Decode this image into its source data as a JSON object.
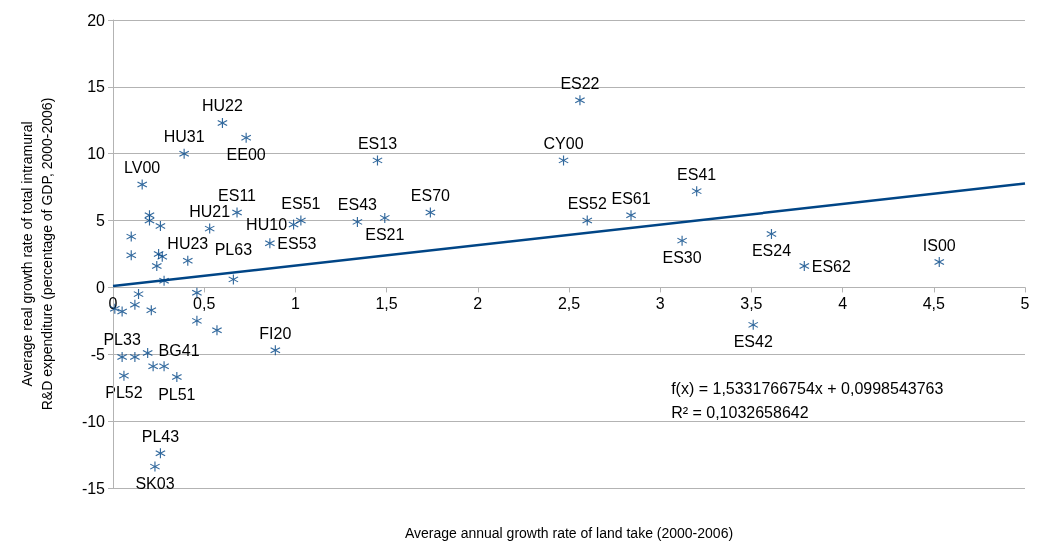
{
  "chart_data": {
    "type": "scatter",
    "xlabel": "Average annual growth rate of land take (2000-2006)",
    "ylabel": "Average real growth rate of total intramural\nR&D expenditure (percentage of GDP, 2000-2006)",
    "xlim": [
      0,
      5
    ],
    "xticks": [
      0,
      {
        "value": 0.5,
        "label": "0,5"
      },
      1,
      {
        "value": 1.5,
        "label": "1,5"
      },
      2,
      {
        "value": 2.5,
        "label": "2,5"
      },
      3,
      {
        "value": 3.5,
        "label": "3,5"
      },
      4,
      {
        "value": 4.5,
        "label": "4,5"
      },
      5
    ],
    "ylim": [
      -15,
      20
    ],
    "yticks": [
      -15,
      -10,
      -5,
      0,
      5,
      10,
      15,
      20
    ],
    "grid": "y",
    "marker": "cross",
    "series": [
      {
        "color": "#004586",
        "x": [
          2.56,
          0.6,
          0.73,
          0.39,
          1.45,
          2.47,
          0.16,
          3.2,
          0.68,
          1.74,
          1.03,
          0.99,
          1.34,
          1.49,
          2.6,
          2.84,
          0.53,
          3.12,
          3.61,
          0.86,
          0.41,
          3.79,
          4.53,
          0.66,
          3.51,
          0.89,
          0.05,
          0.12,
          0.19,
          0.06,
          0.22,
          0.28,
          0.35,
          0.26,
          0.23,
          0.14,
          0.12,
          0.21,
          0.01,
          0.05,
          0.46,
          0.46,
          0.57,
          0.2,
          0.2,
          0.26,
          0.1,
          0.1,
          0.25,
          0.27,
          0.24,
          0.28
        ],
        "values": [
          14.0,
          12.3,
          11.2,
          10.0,
          9.5,
          9.5,
          7.7,
          7.2,
          5.6,
          5.6,
          5.0,
          4.7,
          4.9,
          5.2,
          5.0,
          5.4,
          4.4,
          3.5,
          4.0,
          3.3,
          2.0,
          1.6,
          1.9,
          0.6,
          -2.8,
          -4.7,
          -5.2,
          -5.2,
          -4.9,
          -6.6,
          -5.9,
          -5.9,
          -6.7,
          -12.4,
          -13.4,
          -0.5,
          -1.3,
          -1.7,
          -1.6,
          -1.8,
          -0.4,
          -2.5,
          -3.2,
          5.4,
          5.0,
          4.6,
          3.8,
          2.4,
          2.5,
          2.3,
          1.6,
          0.5
        ]
      },
      {
        "type": "line",
        "color": "#004586",
        "line_style": "solid",
        "marker": "none",
        "x": [
          0,
          5
        ],
        "values": [
          0.1,
          7.77
        ]
      }
    ],
    "annotations": [
      {
        "text": "ES22",
        "x": 2.56,
        "y": 14.0
      },
      {
        "text": "HU22",
        "x": 0.6,
        "y": 12.3
      },
      {
        "text": "EE00",
        "x": 0.73,
        "y": 11.2
      },
      {
        "text": "HU31",
        "x": 0.39,
        "y": 10.0
      },
      {
        "text": "ES13",
        "x": 1.45,
        "y": 9.5
      },
      {
        "text": "CY00",
        "x": 2.47,
        "y": 9.5
      },
      {
        "text": "LV00",
        "x": 0.16,
        "y": 7.7
      },
      {
        "text": "ES41",
        "x": 3.2,
        "y": 7.2
      },
      {
        "text": "ES11",
        "x": 0.68,
        "y": 5.6
      },
      {
        "text": "ES70",
        "x": 1.74,
        "y": 5.6
      },
      {
        "text": "ES51",
        "x": 1.03,
        "y": 5.0
      },
      {
        "text": "HU10",
        "x": 0.99,
        "y": 4.7
      },
      {
        "text": "ES43",
        "x": 1.34,
        "y": 4.9
      },
      {
        "text": "ES21",
        "x": 1.49,
        "y": 5.2
      },
      {
        "text": "ES52",
        "x": 2.6,
        "y": 5.0
      },
      {
        "text": "ES61",
        "x": 2.84,
        "y": 5.4
      },
      {
        "text": "HU21",
        "x": 0.53,
        "y": 4.4
      },
      {
        "text": "ES30",
        "x": 3.12,
        "y": 3.5
      },
      {
        "text": "ES24",
        "x": 3.61,
        "y": 4.0
      },
      {
        "text": "ES53",
        "x": 0.86,
        "y": 3.3
      },
      {
        "text": "HU23",
        "x": 0.41,
        "y": 2.0
      },
      {
        "text": "ES62",
        "x": 3.79,
        "y": 1.6
      },
      {
        "text": "IS00",
        "x": 4.53,
        "y": 1.9
      },
      {
        "text": "PL63",
        "x": 0.66,
        "y": 0.6
      },
      {
        "text": "ES42",
        "x": 3.51,
        "y": -2.8
      },
      {
        "text": "FI20",
        "x": 0.89,
        "y": -4.7
      },
      {
        "text": "PL33",
        "x": 0.05,
        "y": -5.2
      },
      {
        "text": "BG41",
        "x": 0.28,
        "y": -5.9
      },
      {
        "text": "PL52",
        "x": 0.06,
        "y": -6.6
      },
      {
        "text": "PL51",
        "x": 0.35,
        "y": -6.7
      },
      {
        "text": "PL43",
        "x": 0.26,
        "y": -12.4
      },
      {
        "text": "SK03",
        "x": 0.23,
        "y": -13.4
      },
      "f(x) = 1,5331766754x + 0,0998543763",
      "R² = 0,1032658642"
    ]
  }
}
